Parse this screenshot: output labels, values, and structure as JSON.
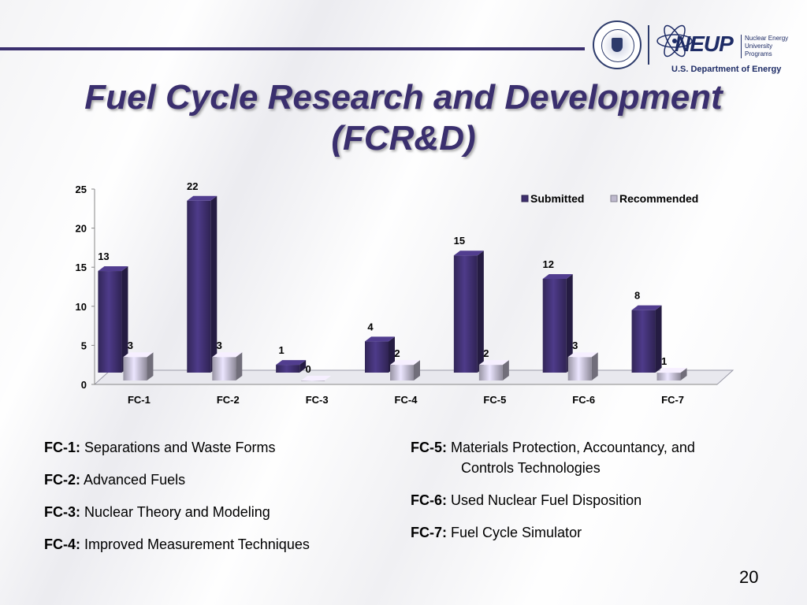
{
  "header": {
    "title_line1": "Fuel Cycle Research and Development",
    "title_line2": "(FCR&D)",
    "logo": {
      "brand_word": "NEUP",
      "brand_sub_line1": "Nuclear Energy",
      "brand_sub_line2": "University Programs",
      "org": "U.S. Department of Energy"
    }
  },
  "colors": {
    "submitted": "#3e2f6e",
    "recommended": "#bdb8cc",
    "accent": "#3a2f6e"
  },
  "chart_data": {
    "type": "bar",
    "categories": [
      "FC-1",
      "FC-2",
      "FC-3",
      "FC-4",
      "FC-5",
      "FC-6",
      "FC-7"
    ],
    "series": [
      {
        "name": "Submitted",
        "values": [
          13,
          22,
          1,
          4,
          15,
          12,
          8
        ]
      },
      {
        "name": "Recommended",
        "values": [
          3,
          3,
          0,
          2,
          2,
          3,
          1
        ]
      }
    ],
    "ylim": [
      0,
      25
    ],
    "yticks": [
      0,
      5,
      10,
      15,
      20,
      25
    ],
    "legend": "top-right",
    "grid": false,
    "style": "3d-column"
  },
  "definitions": {
    "left": [
      {
        "code": "FC-1:",
        "text": "Separations and Waste Forms"
      },
      {
        "code": "FC-2:",
        "text": "Advanced Fuels"
      },
      {
        "code": "FC-3:",
        "text": "Nuclear Theory and Modeling"
      },
      {
        "code": "FC-4:",
        "text": "Improved Measurement Techniques"
      }
    ],
    "right": [
      {
        "code": "FC-5:",
        "text": "Materials Protection, Accountancy, and",
        "text2": "Controls Technologies"
      },
      {
        "code": "FC-6:",
        "text": "Used Nuclear Fuel Disposition"
      },
      {
        "code": "FC-7:",
        "text": "Fuel Cycle Simulator"
      }
    ]
  },
  "footer": {
    "page_number": "20"
  }
}
